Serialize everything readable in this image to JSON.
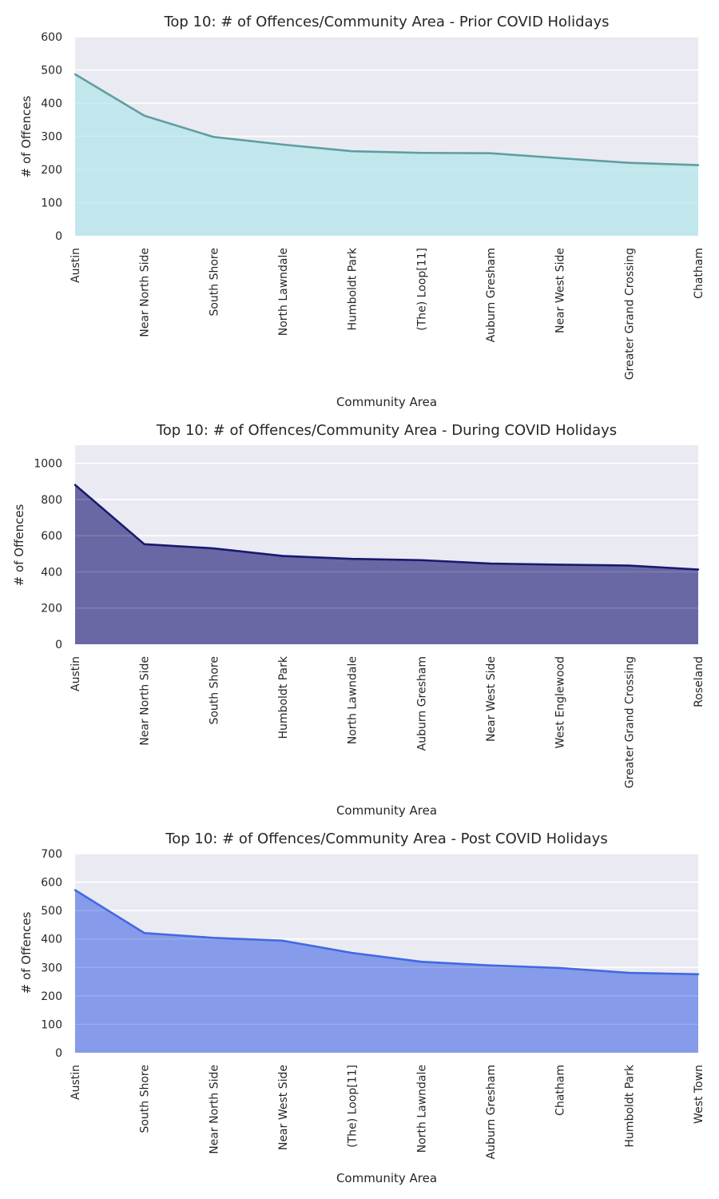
{
  "chart_data": [
    {
      "type": "area",
      "title": "Top 10: # of Offences/Community Area - Prior COVID Holidays",
      "xlabel": "Community Area",
      "ylabel": "# of Offences",
      "categories": [
        "Austin",
        "Near North Side",
        "South Shore",
        "North Lawndale",
        "Humboldt Park",
        "(The) Loop[11]",
        "Auburn Gresham",
        "Near West Side",
        "Greater Grand Crossing",
        "Chatham"
      ],
      "values": [
        487,
        362,
        298,
        275,
        255,
        250,
        249,
        234,
        220,
        213
      ],
      "ylim": [
        0,
        600
      ],
      "yticks": [
        0,
        100,
        200,
        300,
        400,
        500,
        600
      ],
      "grid": true,
      "line_color": "#5f9ea0",
      "fill_color": "#bde7ec"
    },
    {
      "type": "area",
      "title": "Top 10: # of Offences/Community Area - During COVID Holidays",
      "xlabel": "Community Area",
      "ylabel": "# of Offences",
      "categories": [
        "Austin",
        "Near North Side",
        "South Shore",
        "Humboldt Park",
        "North Lawndale",
        "Auburn Gresham",
        "Near West Side",
        "West Englewood",
        "Greater Grand Crossing",
        "Roseland"
      ],
      "values": [
        881,
        553,
        530,
        488,
        472,
        465,
        446,
        440,
        435,
        413
      ],
      "ylim": [
        0,
        1100
      ],
      "yticks": [
        0,
        200,
        400,
        600,
        800,
        1000
      ],
      "grid": true,
      "line_color": "#191970",
      "fill_color": "#5b5a9b"
    },
    {
      "type": "area",
      "title": "Top 10: # of Offences/Community Area - Post COVID Holidays",
      "xlabel": "Community Area",
      "ylabel": "# of Offences",
      "categories": [
        "Austin",
        "South Shore",
        "Near North Side",
        "Near West Side",
        "(The) Loop[11]",
        "North Lawndale",
        "Auburn Gresham",
        "Chatham",
        "Humboldt Park",
        "West Town"
      ],
      "values": [
        572,
        421,
        404,
        394,
        351,
        320,
        307,
        298,
        281,
        276
      ],
      "ylim": [
        0,
        700
      ],
      "yticks": [
        0,
        100,
        200,
        300,
        400,
        500,
        600,
        700
      ],
      "grid": true,
      "line_color": "#4169e1",
      "fill_color": "#7b92e8"
    }
  ]
}
